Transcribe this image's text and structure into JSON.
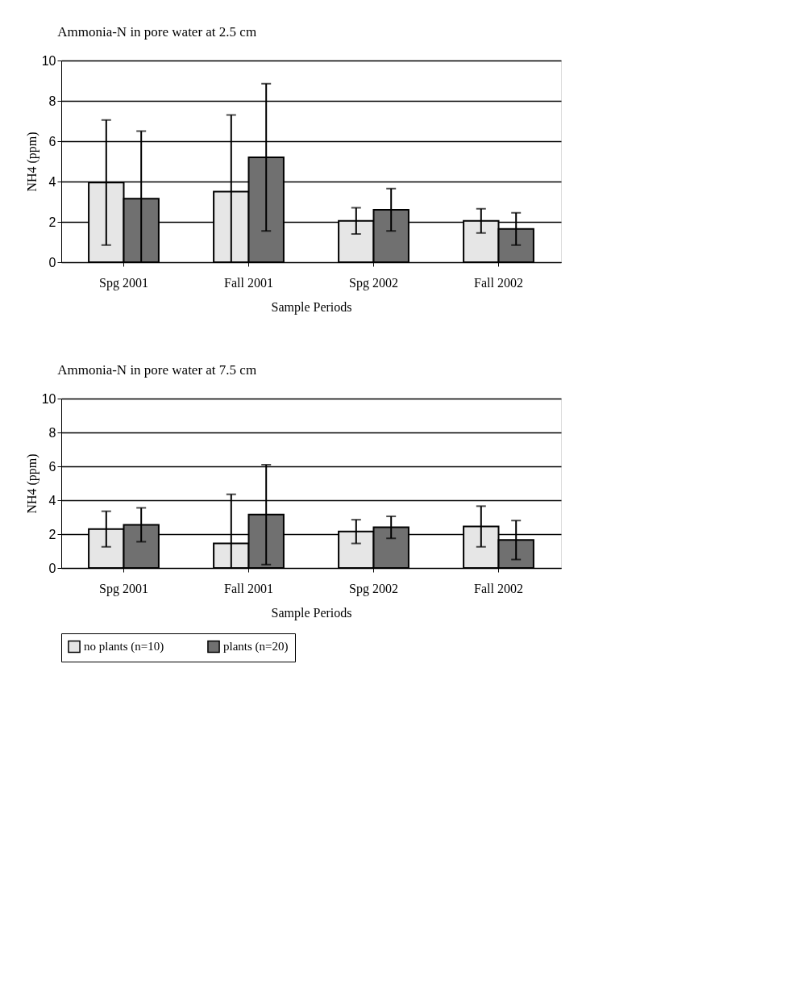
{
  "chart_data": [
    {
      "type": "bar",
      "title": "Ammonia-N in pore water at 2.5 cm",
      "xlabel": "Sample Periods",
      "ylabel": "NH4 (ppm)",
      "categories": [
        "Spg 2001",
        "Fall 2001",
        "Spg 2002",
        "Fall 2002"
      ],
      "ylim": [
        0,
        10
      ],
      "yticks": [
        0,
        2,
        4,
        6,
        8,
        10
      ],
      "grid": "y",
      "legend": false,
      "series": [
        {
          "color": "#e6e6e6",
          "values": [
            3.95,
            3.5,
            2.05,
            2.05
          ],
          "errors": [
            3.1,
            [
              0,
              7.3
            ],
            0.65,
            0.6
          ]
        },
        {
          "color": "#707070",
          "values": [
            3.15,
            5.2,
            2.6,
            1.65
          ],
          "errors": [
            [
              0,
              6.5
            ],
            3.65,
            1.05,
            0.8
          ]
        }
      ]
    },
    {
      "type": "bar",
      "title": "Ammonia-N in pore water at 7.5 cm",
      "xlabel": "Sample Periods",
      "ylabel": "NH4 (ppm)",
      "categories": [
        "Spg 2001",
        "Fall 2001",
        "Spg 2002",
        "Fall 2002"
      ],
      "ylim": [
        0,
        10
      ],
      "yticks": [
        0,
        2,
        4,
        6,
        8,
        10
      ],
      "grid": "y",
      "legend": "bottom",
      "series": [
        {
          "name": "no plants (n=10)",
          "color": "#e6e6e6",
          "values": [
            2.3,
            1.45,
            2.15,
            2.45
          ],
          "errors": [
            1.05,
            [
              0,
              4.35
            ],
            0.7,
            1.2
          ]
        },
        {
          "name": "plants (n=20)",
          "color": "#707070",
          "values": [
            2.55,
            3.15,
            2.4,
            1.65
          ],
          "errors": [
            1.0,
            2.95,
            0.65,
            1.15
          ]
        }
      ]
    }
  ]
}
